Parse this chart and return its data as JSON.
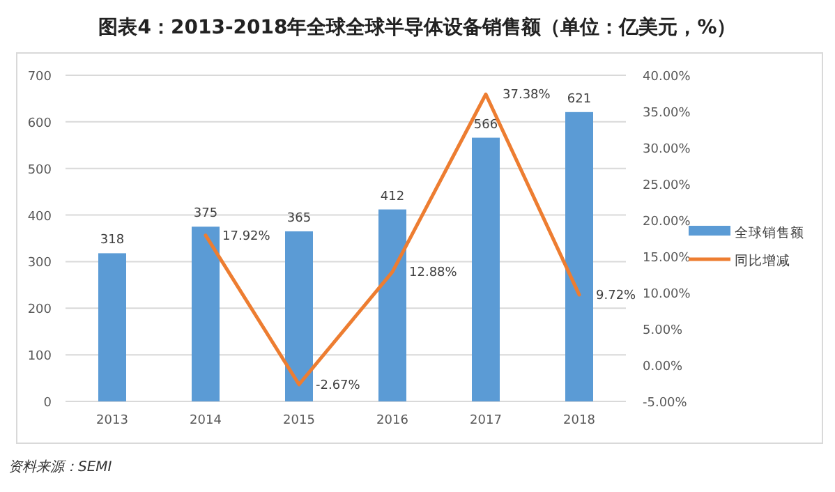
{
  "chart_data": {
    "type": "bar",
    "title": "图表4：2013-2018年全球全球半导体设备销售额（单位：亿美元，%）",
    "categories": [
      "2013",
      "2014",
      "2015",
      "2016",
      "2017",
      "2018"
    ],
    "series": [
      {
        "name": "全球销售额",
        "color": "#5b9bd5",
        "values": [
          318,
          375,
          365,
          412,
          566,
          621
        ],
        "value_labels": [
          "318",
          "375",
          "365",
          "412",
          "566",
          "621"
        ]
      },
      {
        "name": "同比增减",
        "type": "line",
        "axis": "y2",
        "color": "#ed7d31",
        "values": [
          null,
          17.92,
          -2.67,
          12.88,
          37.38,
          9.72
        ],
        "value_labels": [
          null,
          "17.92%",
          "-2.67%",
          "12.88%",
          "37.38%",
          "9.72%"
        ]
      }
    ],
    "ylim": [
      0,
      700
    ],
    "yticks": [
      0,
      100,
      200,
      300,
      400,
      500,
      600,
      700
    ],
    "y2lim": [
      -5,
      40
    ],
    "y2ticks": [
      {
        "value": -5,
        "label": "-5.00%"
      },
      {
        "value": 0,
        "label": "0.00%"
      },
      {
        "value": 5,
        "label": "5.00%"
      },
      {
        "value": 10,
        "label": "10.00%"
      },
      {
        "value": 15,
        "label": "15.00%"
      },
      {
        "value": 20,
        "label": "20.00%"
      },
      {
        "value": 25,
        "label": "25.00%"
      },
      {
        "value": 30,
        "label": "30.00%"
      },
      {
        "value": 35,
        "label": "35.00%"
      },
      {
        "value": 40,
        "label": "40.00%"
      }
    ],
    "grid": "y",
    "legend": "right",
    "annotations": [
      "资料来源：SEMI"
    ]
  }
}
